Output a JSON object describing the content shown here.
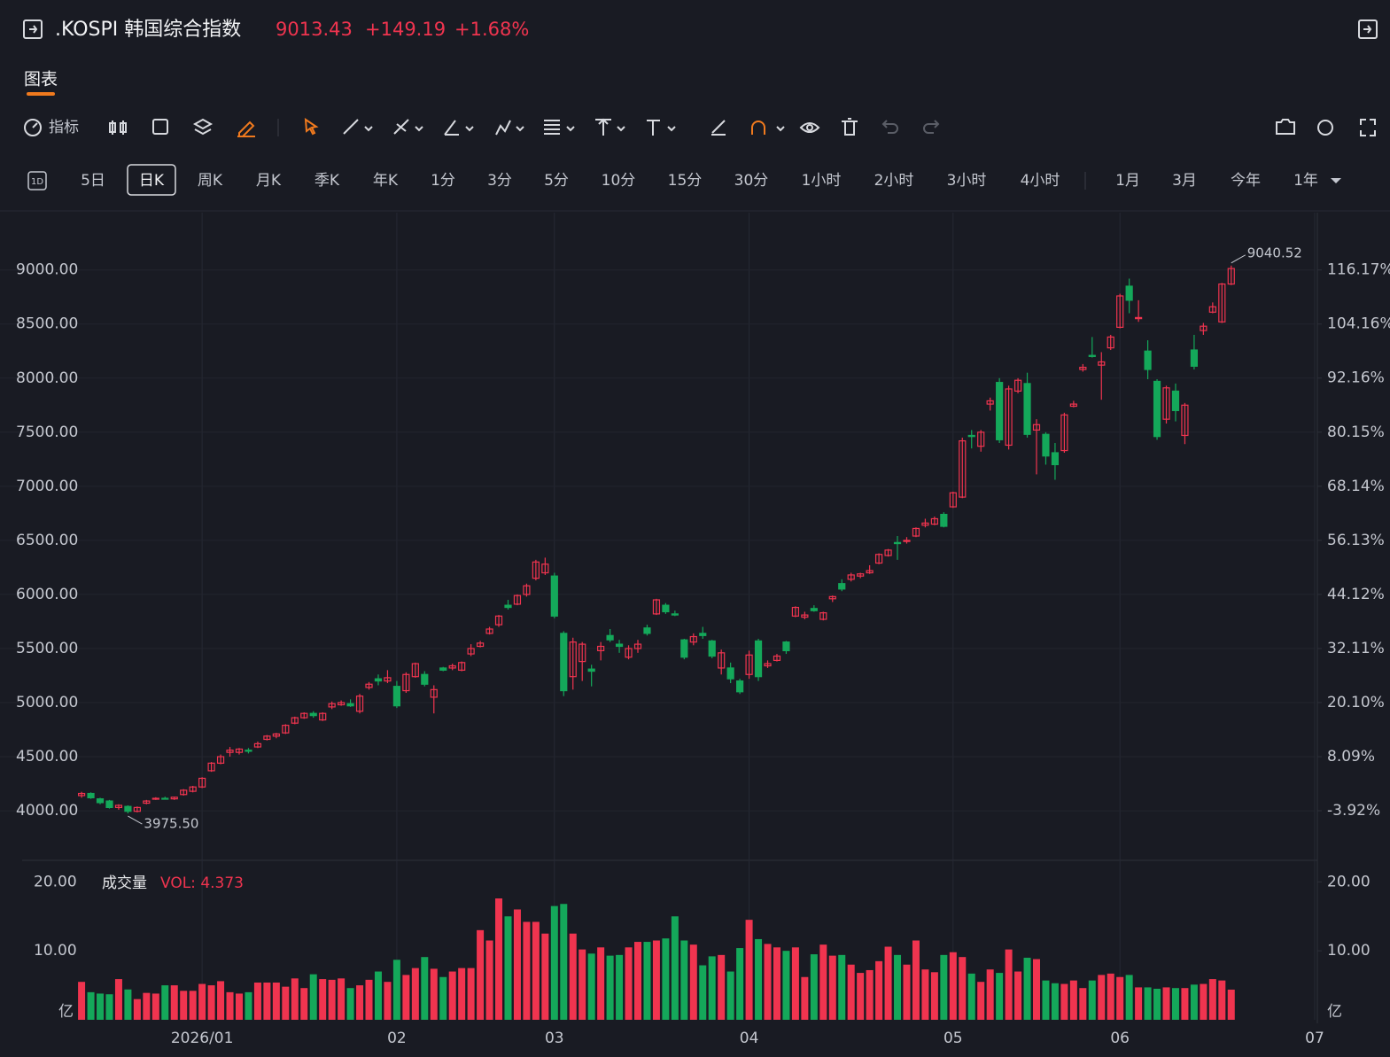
{
  "header": {
    "title": ".KOSPI 韩国综合指数",
    "price": "9013.43",
    "change": "+149.19",
    "change_pct": "+1.68%"
  },
  "tabs": {
    "active": "图表"
  },
  "toolbar": {
    "indicator": "指标"
  },
  "periods": {
    "icon": "1D",
    "items": [
      "5日",
      "日K",
      "周K",
      "月K",
      "季K",
      "年K",
      "1分",
      "3分",
      "5分",
      "10分",
      "15分",
      "30分",
      "1小时",
      "2小时",
      "3小时",
      "4小时",
      "1月",
      "3月",
      "今年",
      "1年"
    ],
    "active": 1
  },
  "chart_data": [
    {
      "type": "candlestick",
      "up_color": "#f0344f",
      "down_color": "#14a85a",
      "ylim": [
        3550,
        9530
      ],
      "yticks": [
        {
          "value": 4000,
          "label": "4000.00"
        },
        {
          "value": 4500,
          "label": "4500.00"
        },
        {
          "value": 5000,
          "label": "5000.00"
        },
        {
          "value": 5500,
          "label": "5500.00"
        },
        {
          "value": 6000,
          "label": "6000.00"
        },
        {
          "value": 6500,
          "label": "6500.00"
        },
        {
          "value": 7000,
          "label": "7000.00"
        },
        {
          "value": 7500,
          "label": "7500.00"
        },
        {
          "value": 8000,
          "label": "8000.00"
        },
        {
          "value": 8500,
          "label": "8500.00"
        },
        {
          "value": 9000,
          "label": "9000.00"
        }
      ],
      "y2lim": [
        -14.73,
        128.9
      ],
      "y2ticks": [
        {
          "value": -3.92,
          "label": "-3.92%"
        },
        {
          "value": 8.09,
          "label": "8.09%"
        },
        {
          "value": 20.1,
          "label": "20.10%"
        },
        {
          "value": 32.11,
          "label": "32.11%"
        },
        {
          "value": 44.12,
          "label": "44.12%"
        },
        {
          "value": 56.13,
          "label": "56.13%"
        },
        {
          "value": 68.14,
          "label": "68.14%"
        },
        {
          "value": 80.15,
          "label": "80.15%"
        },
        {
          "value": 92.16,
          "label": "92.16%"
        },
        {
          "value": 104.16,
          "label": "104.16%"
        },
        {
          "value": 116.17,
          "label": "116.17%"
        }
      ],
      "xlim": [
        -8.8,
        133.1
      ],
      "xticks": [
        {
          "value": 13,
          "label": "2026/01"
        },
        {
          "value": 34,
          "label": "02"
        },
        {
          "value": 51,
          "label": "03"
        },
        {
          "value": 72,
          "label": "04"
        },
        {
          "value": 94,
          "label": "05"
        },
        {
          "value": 112,
          "label": "06"
        },
        {
          "value": 133,
          "label": "07"
        }
      ],
      "grid": true,
      "max_label": "9040.52",
      "min_label": "3975.50",
      "ohlc": [
        [
          4140,
          4175,
          4120,
          4160
        ],
        [
          4160,
          4170,
          4110,
          4120
        ],
        [
          4110,
          4120,
          4060,
          4075
        ],
        [
          4090,
          4100,
          4020,
          4030
        ],
        [
          4030,
          4060,
          4010,
          4050
        ],
        [
          4040,
          4050,
          3975.5,
          3995
        ],
        [
          3995,
          4040,
          3985,
          4030
        ],
        [
          4070,
          4100,
          4060,
          4090
        ],
        [
          4110,
          4125,
          4100,
          4115
        ],
        [
          4115,
          4130,
          4105,
          4110
        ],
        [
          4110,
          4130,
          4100,
          4125
        ],
        [
          4150,
          4200,
          4140,
          4190
        ],
        [
          4180,
          4230,
          4170,
          4220
        ],
        [
          4220,
          4310,
          4210,
          4300
        ],
        [
          4370,
          4450,
          4360,
          4440
        ],
        [
          4440,
          4520,
          4430,
          4500
        ],
        [
          4540,
          4590,
          4500,
          4560
        ],
        [
          4540,
          4580,
          4520,
          4570
        ],
        [
          4560,
          4580,
          4530,
          4550
        ],
        [
          4590,
          4640,
          4580,
          4620
        ],
        [
          4660,
          4700,
          4650,
          4690
        ],
        [
          4690,
          4720,
          4670,
          4710
        ],
        [
          4720,
          4800,
          4710,
          4790
        ],
        [
          4810,
          4870,
          4800,
          4860
        ],
        [
          4860,
          4910,
          4850,
          4900
        ],
        [
          4900,
          4920,
          4860,
          4880
        ],
        [
          4840,
          4910,
          4830,
          4900
        ],
        [
          4960,
          5010,
          4940,
          4990
        ],
        [
          4980,
          5020,
          4970,
          5000
        ],
        [
          4990,
          5030,
          4960,
          4970
        ],
        [
          4920,
          5080,
          4900,
          5060
        ],
        [
          5140,
          5190,
          5120,
          5170
        ],
        [
          5220,
          5260,
          5160,
          5200
        ],
        [
          5200,
          5300,
          5180,
          5230
        ],
        [
          5150,
          5200,
          4950,
          4970
        ],
        [
          5110,
          5280,
          5090,
          5260
        ],
        [
          5240,
          5370,
          5230,
          5360
        ],
        [
          5260,
          5290,
          5150,
          5170
        ],
        [
          5050,
          5160,
          4900,
          5120
        ],
        [
          5320,
          5330,
          5290,
          5300
        ],
        [
          5320,
          5360,
          5300,
          5340
        ],
        [
          5300,
          5380,
          5290,
          5370
        ],
        [
          5450,
          5540,
          5430,
          5500
        ],
        [
          5520,
          5570,
          5510,
          5550
        ],
        [
          5640,
          5700,
          5630,
          5680
        ],
        [
          5720,
          5810,
          5700,
          5800
        ],
        [
          5900,
          5950,
          5860,
          5880
        ],
        [
          5910,
          6000,
          5900,
          5990
        ],
        [
          6000,
          6100,
          5980,
          6080
        ],
        [
          6150,
          6320,
          6130,
          6300
        ],
        [
          6200,
          6340,
          6180,
          6280
        ],
        [
          6170,
          6200,
          5780,
          5800
        ],
        [
          5640,
          5660,
          5060,
          5110
        ],
        [
          5240,
          5600,
          5120,
          5560
        ],
        [
          5380,
          5560,
          5200,
          5540
        ],
        [
          5310,
          5350,
          5150,
          5290
        ],
        [
          5480,
          5560,
          5390,
          5520
        ],
        [
          5620,
          5680,
          5560,
          5580
        ],
        [
          5540,
          5580,
          5460,
          5520
        ],
        [
          5420,
          5530,
          5400,
          5500
        ],
        [
          5500,
          5580,
          5460,
          5540
        ],
        [
          5690,
          5720,
          5620,
          5640
        ],
        [
          5820,
          5960,
          5810,
          5950
        ],
        [
          5900,
          5920,
          5820,
          5840
        ],
        [
          5820,
          5850,
          5800,
          5810
        ],
        [
          5580,
          5590,
          5400,
          5420
        ],
        [
          5560,
          5640,
          5530,
          5610
        ],
        [
          5640,
          5700,
          5590,
          5620
        ],
        [
          5570,
          5580,
          5410,
          5430
        ],
        [
          5320,
          5490,
          5260,
          5460
        ],
        [
          5320,
          5370,
          5180,
          5220
        ],
        [
          5200,
          5220,
          5080,
          5100
        ],
        [
          5260,
          5480,
          5220,
          5440
        ],
        [
          5570,
          5590,
          5200,
          5240
        ],
        [
          5340,
          5390,
          5320,
          5360
        ],
        [
          5390,
          5450,
          5380,
          5430
        ],
        [
          5560,
          5570,
          5450,
          5480
        ],
        [
          5800,
          5890,
          5790,
          5880
        ],
        [
          5790,
          5840,
          5770,
          5810
        ],
        [
          5870,
          5900,
          5840,
          5850
        ],
        [
          5770,
          5840,
          5760,
          5830
        ],
        [
          5960,
          5990,
          5930,
          5980
        ],
        [
          6100,
          6140,
          6030,
          6050
        ],
        [
          6140,
          6200,
          6120,
          6180
        ],
        [
          6170,
          6200,
          6150,
          6190
        ],
        [
          6200,
          6270,
          6190,
          6220
        ],
        [
          6290,
          6380,
          6280,
          6370
        ],
        [
          6360,
          6420,
          6350,
          6410
        ],
        [
          6480,
          6540,
          6320,
          6470
        ],
        [
          6490,
          6530,
          6470,
          6500
        ],
        [
          6540,
          6620,
          6530,
          6610
        ],
        [
          6640,
          6700,
          6620,
          6660
        ],
        [
          6650,
          6720,
          6640,
          6700
        ],
        [
          6740,
          6760,
          6620,
          6630
        ],
        [
          6810,
          6950,
          6800,
          6940
        ],
        [
          6900,
          7450,
          6890,
          7420
        ],
        [
          7470,
          7520,
          7350,
          7460
        ],
        [
          7370,
          7520,
          7320,
          7500
        ],
        [
          7760,
          7820,
          7700,
          7790
        ],
        [
          7960,
          8000,
          7400,
          7430
        ],
        [
          7380,
          7930,
          7340,
          7900
        ],
        [
          7880,
          8000,
          7860,
          7980
        ],
        [
          7950,
          8050,
          7450,
          7480
        ],
        [
          7520,
          7620,
          7110,
          7570
        ],
        [
          7480,
          7500,
          7200,
          7280
        ],
        [
          7310,
          7400,
          7060,
          7200
        ],
        [
          7330,
          7680,
          7310,
          7660
        ],
        [
          7740,
          7790,
          7730,
          7760
        ],
        [
          8080,
          8130,
          8060,
          8100
        ],
        [
          8210,
          8380,
          8190,
          8200
        ],
        [
          8120,
          8240,
          7800,
          8150
        ],
        [
          8280,
          8400,
          8260,
          8380
        ],
        [
          8470,
          8780,
          8460,
          8760
        ],
        [
          8850,
          8920,
          8600,
          8720
        ],
        [
          8550,
          8720,
          8520,
          8560
        ],
        [
          8250,
          8350,
          7990,
          8080
        ],
        [
          7970,
          7990,
          7430,
          7460
        ],
        [
          7620,
          7930,
          7580,
          7910
        ],
        [
          7880,
          7950,
          7600,
          7700
        ],
        [
          7470,
          7770,
          7390,
          7750
        ],
        [
          8260,
          8400,
          8080,
          8110
        ],
        [
          8440,
          8510,
          8400,
          8480
        ],
        [
          8610,
          8700,
          8600,
          8660
        ],
        [
          8520,
          8880,
          8510,
          8870
        ],
        [
          8870,
          9040.52,
          8860,
          9013.43
        ]
      ]
    },
    {
      "type": "bar",
      "title": "成交量",
      "vol_label": "VOL: 4.373",
      "unit": "亿",
      "ylim": [
        0,
        23
      ],
      "yticks": [
        {
          "value": 10,
          "label": "10.00"
        },
        {
          "value": 20,
          "label": "20.00"
        }
      ],
      "values": [
        5.5,
        4.0,
        3.8,
        3.7,
        5.9,
        4.4,
        3.0,
        3.9,
        3.8,
        5.0,
        5.0,
        4.2,
        4.2,
        5.2,
        5.0,
        5.6,
        4.0,
        3.8,
        4.0,
        5.4,
        5.4,
        5.4,
        4.8,
        6.0,
        4.6,
        6.6,
        5.9,
        5.8,
        6.0,
        4.6,
        5.0,
        5.8,
        7.0,
        5.5,
        8.7,
        6.5,
        7.5,
        9.1,
        7.4,
        6.2,
        7.0,
        7.5,
        7.5,
        13.0,
        11.5,
        17.6,
        15.0,
        16.0,
        14.2,
        14.2,
        12.5,
        16.5,
        16.8,
        12.5,
        10.2,
        9.6,
        10.5,
        9.3,
        9.4,
        10.5,
        11.3,
        11.3,
        11.5,
        11.8,
        15.0,
        11.5,
        10.9,
        7.9,
        9.2,
        9.4,
        7.0,
        10.4,
        14.5,
        11.7,
        11.0,
        10.5,
        10.0,
        10.5,
        6.2,
        9.5,
        10.9,
        9.3,
        9.4,
        8.0,
        6.8,
        7.2,
        8.5,
        10.6,
        9.4,
        8.0,
        11.5,
        7.3,
        6.9,
        9.4,
        9.8,
        9.1,
        6.7,
        5.5,
        7.3,
        6.8,
        10.2,
        7.0,
        9.0,
        8.8,
        5.7,
        5.3,
        5.2,
        5.7,
        4.6,
        5.7,
        6.5,
        6.7,
        6.2,
        6.5,
        4.7,
        4.7,
        4.5,
        4.7,
        4.6,
        4.6,
        5.1,
        5.2,
        5.9,
        5.7,
        4.373
      ]
    }
  ]
}
